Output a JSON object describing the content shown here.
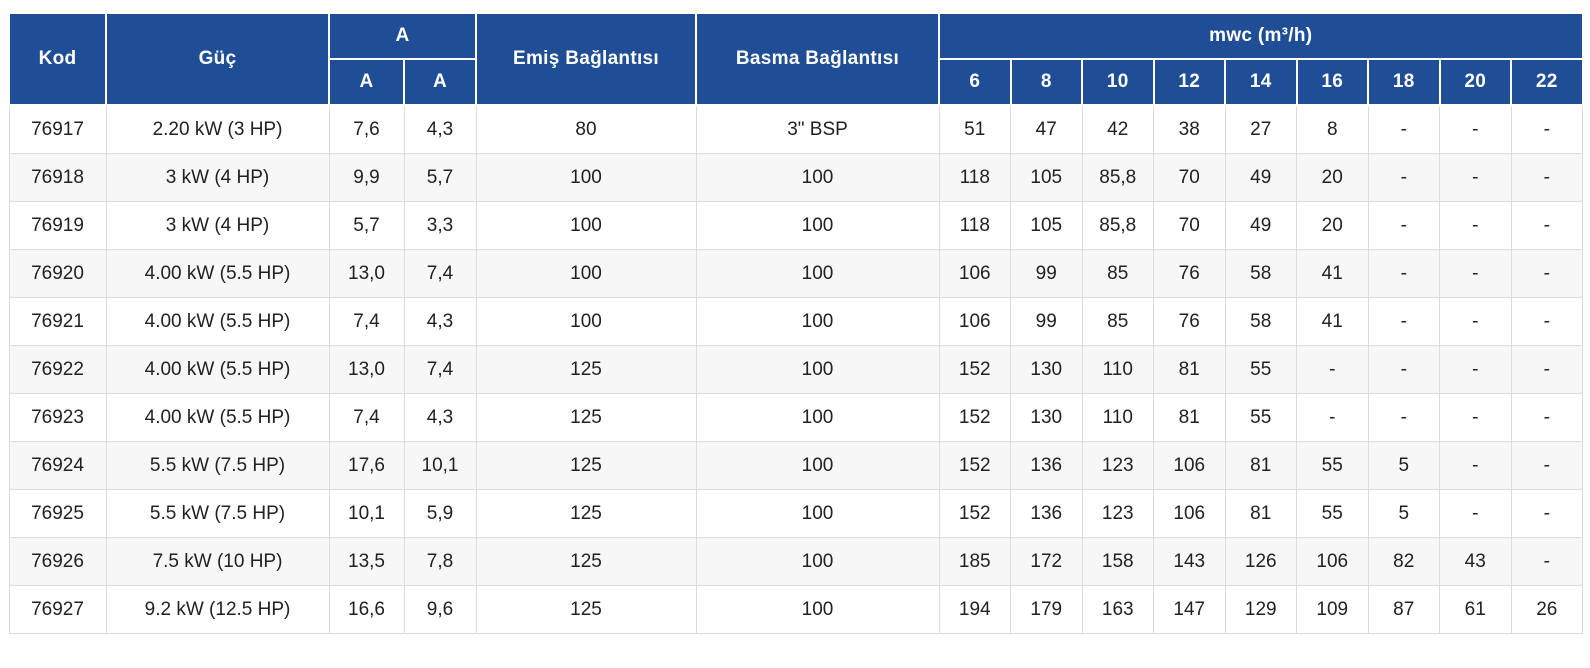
{
  "table": {
    "header": {
      "kod": "Kod",
      "guc": "Güç",
      "a_group": "A",
      "a_sub_1": "A",
      "a_sub_2": "A",
      "emis": "Emiş Bağlantısı",
      "basma": "Basma Bağlantısı",
      "mwc_group": "mwc (m³/h)",
      "mwc_cols": [
        "6",
        "8",
        "10",
        "12",
        "14",
        "16",
        "18",
        "20",
        "22"
      ]
    },
    "rows": [
      {
        "kod": "76917",
        "guc": "2.20 kW (3 HP)",
        "a1": "7,6",
        "a2": "4,3",
        "emis": "80",
        "basma": "3\" BSP",
        "mwc": [
          "51",
          "47",
          "42",
          "38",
          "27",
          "8",
          "-",
          "-",
          "-"
        ]
      },
      {
        "kod": "76918",
        "guc": "3 kW (4 HP)",
        "a1": "9,9",
        "a2": "5,7",
        "emis": "100",
        "basma": "100",
        "mwc": [
          "118",
          "105",
          "85,8",
          "70",
          "49",
          "20",
          "-",
          "-",
          "-"
        ]
      },
      {
        "kod": "76919",
        "guc": "3 kW (4 HP)",
        "a1": "5,7",
        "a2": "3,3",
        "emis": "100",
        "basma": "100",
        "mwc": [
          "118",
          "105",
          "85,8",
          "70",
          "49",
          "20",
          "-",
          "-",
          "-"
        ]
      },
      {
        "kod": "76920",
        "guc": "4.00 kW (5.5 HP)",
        "a1": "13,0",
        "a2": "7,4",
        "emis": "100",
        "basma": "100",
        "mwc": [
          "106",
          "99",
          "85",
          "76",
          "58",
          "41",
          "-",
          "-",
          "-"
        ]
      },
      {
        "kod": "76921",
        "guc": "4.00 kW (5.5 HP)",
        "a1": "7,4",
        "a2": "4,3",
        "emis": "100",
        "basma": "100",
        "mwc": [
          "106",
          "99",
          "85",
          "76",
          "58",
          "41",
          "-",
          "-",
          "-"
        ]
      },
      {
        "kod": "76922",
        "guc": "4.00 kW (5.5 HP)",
        "a1": "13,0",
        "a2": "7,4",
        "emis": "125",
        "basma": "100",
        "mwc": [
          "152",
          "130",
          "110",
          "81",
          "55",
          "-",
          "-",
          "-",
          "-"
        ]
      },
      {
        "kod": "76923",
        "guc": "4.00 kW (5.5 HP)",
        "a1": "7,4",
        "a2": "4,3",
        "emis": "125",
        "basma": "100",
        "mwc": [
          "152",
          "130",
          "110",
          "81",
          "55",
          "-",
          "-",
          "-",
          "-"
        ]
      },
      {
        "kod": "76924",
        "guc": "5.5 kW (7.5 HP)",
        "a1": "17,6",
        "a2": "10,1",
        "emis": "125",
        "basma": "100",
        "mwc": [
          "152",
          "136",
          "123",
          "106",
          "81",
          "55",
          "5",
          "-",
          "-"
        ]
      },
      {
        "kod": "76925",
        "guc": "5.5 kW (7.5 HP)",
        "a1": "10,1",
        "a2": "5,9",
        "emis": "125",
        "basma": "100",
        "mwc": [
          "152",
          "136",
          "123",
          "106",
          "81",
          "55",
          "5",
          "-",
          "-"
        ]
      },
      {
        "kod": "76926",
        "guc": "7.5 kW (10 HP)",
        "a1": "13,5",
        "a2": "7,8",
        "emis": "125",
        "basma": "100",
        "mwc": [
          "185",
          "172",
          "158",
          "143",
          "126",
          "106",
          "82",
          "43",
          "-"
        ]
      },
      {
        "kod": "76927",
        "guc": "9.2 kW (12.5 HP)",
        "a1": "16,6",
        "a2": "9,6",
        "emis": "125",
        "basma": "100",
        "mwc": [
          "194",
          "179",
          "163",
          "147",
          "129",
          "109",
          "87",
          "61",
          "26"
        ]
      }
    ],
    "colors": {
      "header_bg": "#1f4e96",
      "header_text": "#ffffff",
      "row_alt_bg": "#f7f7f7",
      "body_text": "#212121",
      "border": "#dcdcdc"
    }
  }
}
